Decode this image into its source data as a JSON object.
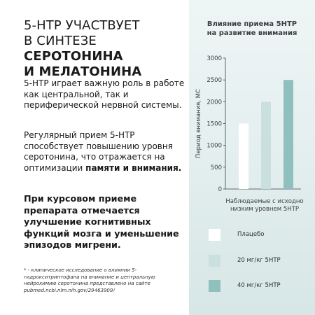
{
  "left": {
    "headline_line1": "5-HTP УЧАСТВУЕТ",
    "headline_line2_prefix": "В СИНТЕЗЕ ",
    "headline_line2_bold": "СЕРОТОНИНА",
    "headline_line3_bold": "И МЕЛАТОНИНА",
    "para1": "5-HTP играет важную роль в работе как центральной, так и периферической нервной системы.",
    "para2_text": "Регулярный прием 5-HTP способствует повышению уровня серотонина, что отражается на оптимизации ",
    "para2_bold": "памяти и внимания.",
    "para3": "При курсовом приеме препарата отмечается улучшение когнитивных функций мозга и уменьшение эпизодов мигрени.",
    "footnote": "* - клиническое исследование о влиянии 5-гидрокситриптофана на внимание и центральную нейрохимию серотонина представлено на сайте pubmed.ncbi.nlm.nih.gov/29463909/"
  },
  "chart_data": {
    "type": "bar",
    "title_line1": "Влияние приема 5НТР",
    "title_line2": "на развитие внимания",
    "ylabel": "Период внимания, МС",
    "xlabel_line1": "Наблюдаемые с исходно",
    "xlabel_line2": "низким уровнем 5НТР",
    "ylim": [
      0,
      3000
    ],
    "yticks": [
      0,
      500,
      1000,
      1500,
      2000,
      2500,
      3000
    ],
    "series": [
      {
        "name": "Плацебо",
        "value": 1500,
        "color": "#ffffff"
      },
      {
        "name": "20 мг/кг 5НТР",
        "value": 2000,
        "color": "#c9e0df"
      },
      {
        "name": "40 мг/кг 5НТР",
        "value": 2500,
        "color": "#8fc0bd"
      }
    ]
  },
  "colors": {
    "panel_bg": "#e6f0f0",
    "axis": "#3a3f44"
  }
}
